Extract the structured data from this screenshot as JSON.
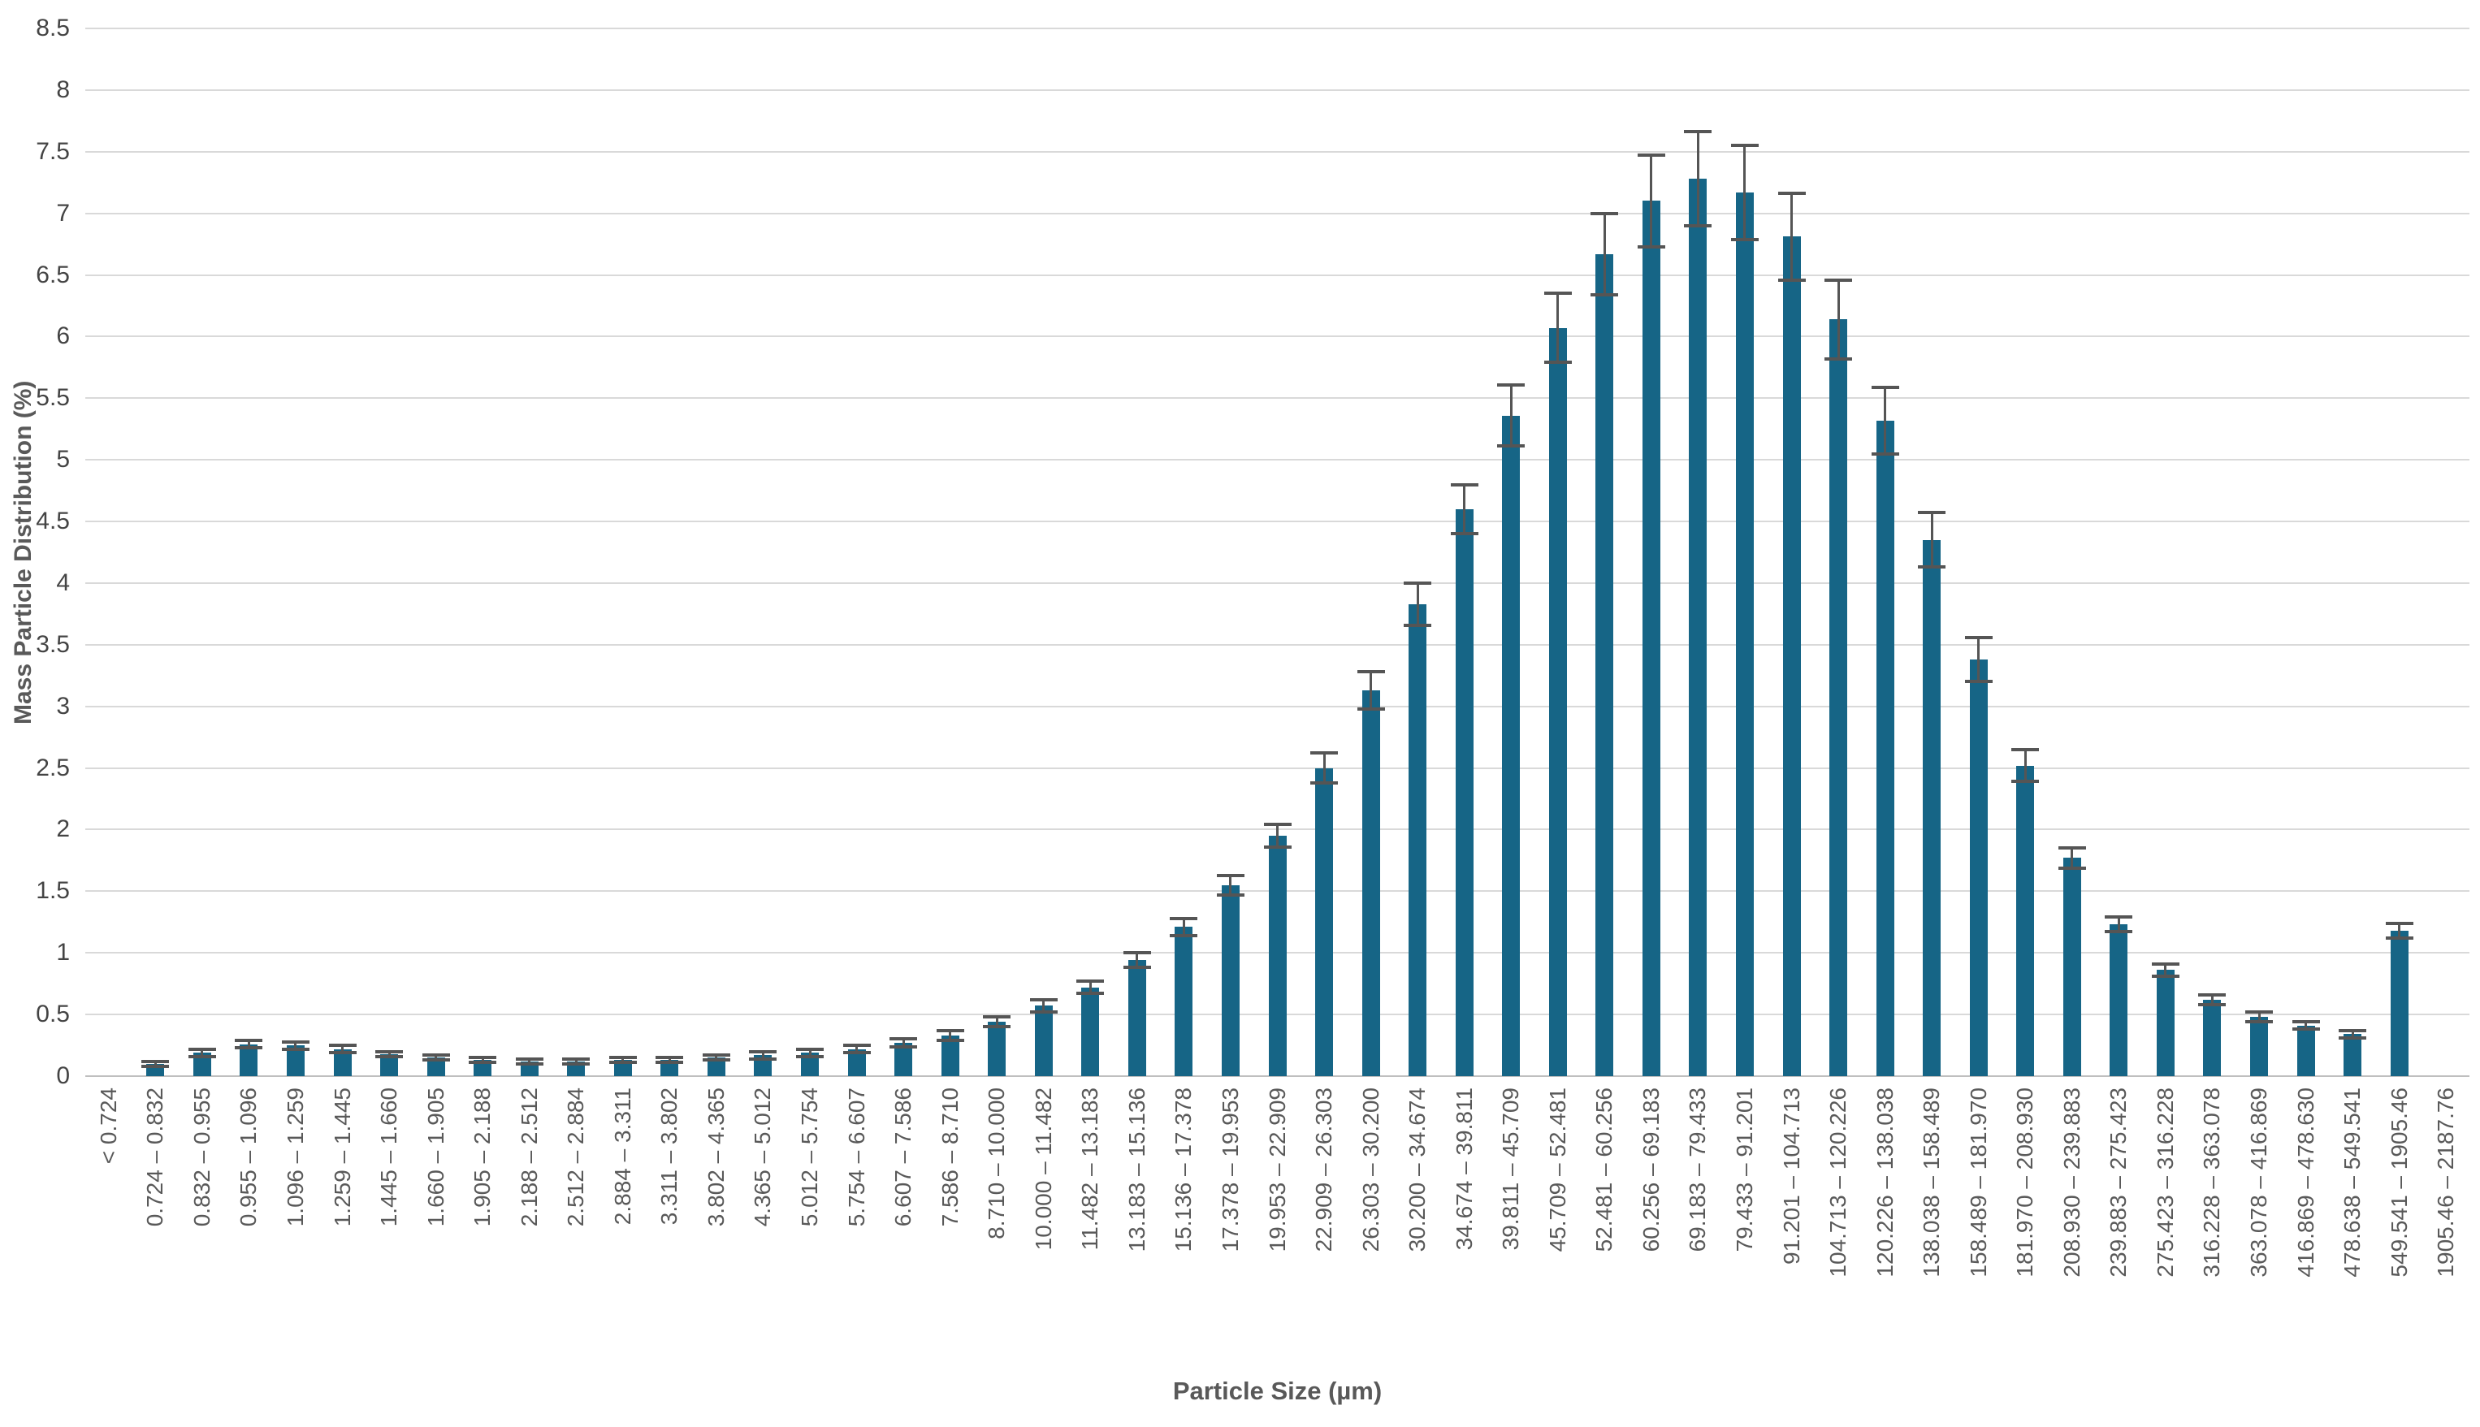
{
  "chart_data": {
    "type": "bar",
    "title": "",
    "xlabel": "Particle Size (µm)",
    "ylabel": "Mass Particle Distribution (%)",
    "ylim": [
      0,
      8.5
    ],
    "ytick_step": 0.5,
    "y_ticks": [
      "0",
      "0.5",
      "1",
      "1.5",
      "2",
      "2.5",
      "3",
      "3.5",
      "4",
      "4.5",
      "5",
      "5.5",
      "6",
      "6.5",
      "7",
      "7.5",
      "8",
      "8.5"
    ],
    "grid": "horizontal",
    "legend_position": "none",
    "error_bars": "symmetric",
    "bar_color": "#166586",
    "error_bar_color": "#555555",
    "gridline_color": "#d9d9d9",
    "axis_line_color": "#bfbfbf",
    "tick_label_color": "#595959",
    "axis_title_color": "#595959",
    "categories": [
      "< 0.724",
      "0.724 – 0.832",
      "0.832 – 0.955",
      "0.955 – 1.096",
      "1.096 – 1.259",
      "1.259 – 1.445",
      "1.445 – 1.660",
      "1.660 – 1.905",
      "1.905 – 2.188",
      "2.188 – 2.512",
      "2.512 – 2.884",
      "2.884 – 3.311",
      "3.311 – 3.802",
      "3.802 – 4.365",
      "4.365 – 5.012",
      "5.012 – 5.754",
      "5.754 – 6.607",
      "6.607 – 7.586",
      "7.586 – 8.710",
      "8.710 – 10.000",
      "10.000 – 11.482",
      "11.482 – 13.183",
      "13.183 – 15.136",
      "15.136 – 17.378",
      "17.378 – 19.953",
      "19.953 – 22.909",
      "22.909 – 26.303",
      "26.303 – 30.200",
      "30.200 – 34.674",
      "34.674 – 39.811",
      "39.811 – 45.709",
      "45.709 – 52.481",
      "52.481 – 60.256",
      "60.256 – 69.183",
      "69.183 – 79.433",
      "79.433 – 91.201",
      "91.201 – 104.713",
      "104.713 – 120.226",
      "120.226 – 138.038",
      "138.038 – 158.489",
      "158.489 – 181.970",
      "181.970 – 208.930",
      "208.930 – 239.883",
      "239.883 – 275.423",
      "275.423 – 316.228",
      "316.228 – 363.078",
      "363.078 – 416.869",
      "416.869 – 478.630",
      "478.638 – 549.541",
      "549.541 – 1905.46",
      "1905.46 – 2187.76"
    ],
    "values": [
      0,
      0.1,
      0.19,
      0.26,
      0.25,
      0.22,
      0.18,
      0.15,
      0.13,
      0.12,
      0.12,
      0.13,
      0.13,
      0.15,
      0.17,
      0.19,
      0.22,
      0.27,
      0.33,
      0.44,
      0.57,
      0.72,
      0.94,
      1.21,
      1.55,
      1.95,
      2.5,
      3.13,
      3.83,
      4.6,
      5.36,
      6.07,
      6.67,
      7.1,
      7.28,
      7.17,
      6.81,
      6.14,
      5.32,
      4.35,
      3.38,
      2.52,
      1.77,
      1.23,
      0.86,
      0.62,
      0.48,
      0.41,
      0.34,
      1.18,
      0
    ],
    "errors": [
      0,
      0.02,
      0.03,
      0.03,
      0.03,
      0.03,
      0.02,
      0.02,
      0.02,
      0.02,
      0.02,
      0.02,
      0.02,
      0.02,
      0.03,
      0.03,
      0.03,
      0.03,
      0.04,
      0.04,
      0.05,
      0.05,
      0.06,
      0.07,
      0.08,
      0.09,
      0.12,
      0.15,
      0.17,
      0.2,
      0.25,
      0.28,
      0.33,
      0.37,
      0.38,
      0.38,
      0.35,
      0.32,
      0.27,
      0.22,
      0.18,
      0.13,
      0.08,
      0.06,
      0.05,
      0.04,
      0.04,
      0.03,
      0.03,
      0.06,
      0
    ]
  }
}
